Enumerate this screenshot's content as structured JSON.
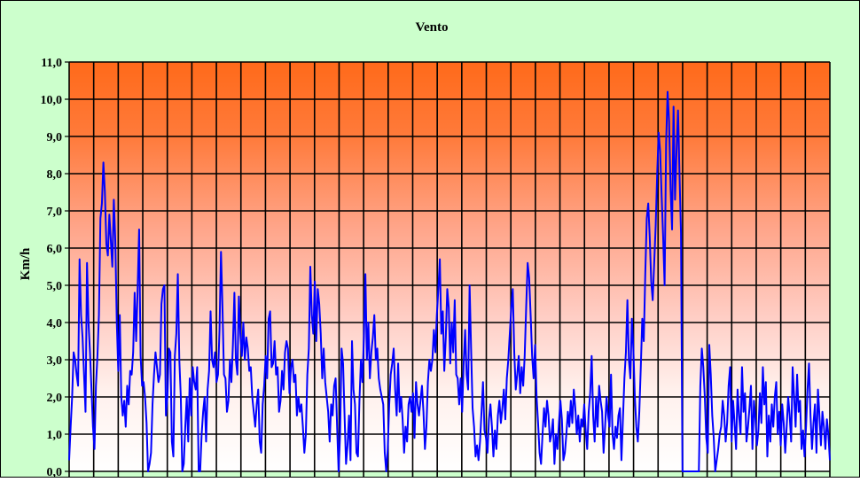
{
  "chart_data": {
    "type": "line",
    "title": "Vento",
    "ylabel": "Km/h",
    "xlabel": "",
    "ylim": [
      0,
      11
    ],
    "yticks": [
      "0,0",
      "1,0",
      "2,0",
      "3,0",
      "4,0",
      "5,0",
      "6,0",
      "7,0",
      "8,0",
      "9,0",
      "10,0",
      "11,0"
    ],
    "grid": true,
    "x_divisions": 31,
    "series": [
      {
        "color": "#0000ff",
        "values": [
          0.3,
          1.2,
          2.0,
          3.2,
          3.0,
          2.6,
          2.3,
          5.7,
          4.2,
          3.6,
          2.6,
          1.6,
          5.6,
          4.0,
          3.2,
          2.2,
          1.2,
          0.6,
          2.3,
          3.1,
          4.2,
          6.8,
          7.2,
          8.3,
          7.5,
          6.1,
          5.8,
          6.9,
          6.2,
          5.5,
          7.3,
          6.2,
          4.0,
          2.7,
          4.2,
          2.0,
          1.5,
          1.9,
          1.2,
          2.3,
          1.8,
          2.7,
          2.6,
          3.2,
          4.8,
          3.5,
          4.9,
          6.5,
          3.1,
          2.3,
          2.4,
          2.0,
          1.3,
          0.0,
          0.2,
          0.5,
          1.8,
          2.6,
          3.2,
          2.8,
          2.4,
          2.6,
          4.5,
          4.9,
          5.0,
          1.5,
          2.0,
          3.3,
          3.2,
          0.8,
          0.4,
          3.1,
          3.7,
          5.3,
          3.0,
          2.0,
          0.0,
          0.2,
          1.2,
          2.0,
          0.8,
          2.5,
          1.5,
          2.8,
          2.4,
          2.2,
          2.8,
          0.0,
          0.0,
          1.0,
          1.6,
          2.0,
          0.8,
          2.2,
          2.7,
          4.3,
          3.0,
          2.8,
          3.2,
          2.4,
          2.6,
          3.8,
          5.9,
          4.4,
          2.6,
          2.5,
          1.6,
          1.9,
          3.0,
          2.4,
          3.4,
          4.8,
          3.0,
          2.6,
          4.7,
          3.7,
          3.1,
          4.0,
          3.0,
          3.6,
          3.3,
          2.7,
          2.8,
          2.0,
          1.6,
          1.2,
          1.8,
          2.2,
          0.8,
          0.5,
          1.8,
          2.3,
          3.1,
          2.5,
          4.1,
          4.3,
          2.8,
          2.9,
          3.5,
          2.6,
          2.8,
          1.6,
          1.9,
          2.7,
          2.2,
          3.2,
          3.5,
          3.3,
          2.1,
          2.8,
          3.0,
          2.4,
          2.6,
          1.5,
          2.0,
          1.6,
          1.8,
          1.2,
          0.5,
          1.0,
          2.6,
          3.3,
          5.5,
          4.2,
          3.7,
          5.1,
          3.5,
          4.9,
          4.5,
          3.7,
          2.5,
          3.3,
          2.4,
          2.0,
          1.6,
          0.8,
          1.8,
          1.5,
          2.3,
          2.5,
          1.2,
          0.0,
          1.0,
          3.3,
          2.9,
          1.5,
          0.2,
          0.7,
          1.5,
          0.3,
          3.5,
          2.2,
          1.8,
          0.5,
          0.4,
          1.9,
          3.0,
          2.4,
          3.6,
          5.3,
          3.0,
          4.0,
          2.5,
          3.2,
          3.6,
          4.2,
          3.0,
          3.3,
          2.5,
          2.2,
          2.0,
          1.8,
          0.5,
          0.0,
          0.6,
          1.8,
          2.6,
          2.9,
          3.3,
          2.2,
          1.5,
          2.9,
          1.6,
          2.0,
          1.4,
          0.5,
          1.2,
          0.8,
          1.8,
          2.0,
          1.6,
          2.1,
          0.9,
          2.4,
          1.8,
          1.5,
          1.9,
          2.3,
          1.6,
          0.6,
          1.2,
          2.4,
          3.0,
          2.7,
          3.0,
          3.8,
          3.2,
          4.2,
          4.9,
          5.7,
          3.7,
          4.3,
          2.7,
          3.6,
          4.9,
          4.4,
          2.9,
          4.0,
          3.2,
          4.6,
          2.6,
          2.5,
          1.8,
          2.5,
          1.6,
          2.9,
          3.8,
          2.6,
          2.2,
          5.0,
          3.3,
          1.7,
          1.2,
          0.4,
          0.7,
          0.3,
          0.8,
          1.6,
          2.4,
          1.1,
          0.9,
          0.5,
          1.4,
          1.8,
          1.2,
          0.4,
          1.1,
          0.6,
          1.5,
          1.9,
          1.3,
          1.7,
          2.2,
          1.4,
          2.5,
          3.0,
          3.7,
          4.4,
          4.9,
          3.2,
          2.2,
          2.6,
          3.1,
          2.1,
          2.8,
          2.3,
          3.1,
          4.4,
          5.6,
          5.2,
          4.2,
          3.1,
          2.5,
          3.4,
          2.0,
          1.3,
          0.5,
          0.2,
          1.0,
          1.7,
          1.2,
          1.9,
          1.5,
          0.8,
          1.0,
          1.4,
          0.2,
          1.0,
          0.6,
          1.3,
          1.9,
          1.4,
          0.3,
          0.5,
          1.0,
          1.6,
          1.2,
          1.9,
          1.3,
          2.2,
          1.7,
          1.0,
          1.5,
          0.8,
          1.4,
          1.2,
          1.8,
          1.1,
          0.6,
          1.6,
          2.1,
          3.1,
          1.5,
          0.8,
          2.0,
          1.2,
          2.3,
          1.9,
          1.6,
          0.5,
          1.2,
          2.0,
          1.5,
          1.2,
          2.6,
          1.0,
          0.6,
          1.2,
          0.9,
          1.5,
          1.7,
          0.3,
          1.4,
          2.5,
          3.2,
          4.6,
          3.0,
          2.5,
          4.1,
          3.3,
          2.0,
          1.2,
          0.8,
          1.6,
          2.8,
          4.1,
          3.5,
          5.3,
          6.8,
          7.2,
          6.3,
          5.1,
          4.6,
          5.6,
          6.6,
          8.0,
          9.1,
          8.6,
          7.4,
          6.3,
          5.0,
          8.8,
          10.2,
          9.4,
          7.6,
          6.5,
          9.8,
          7.3,
          8.6,
          9.7,
          8.0,
          6.4,
          0.0,
          0.0,
          0.0,
          0.0,
          0.0,
          0.0,
          0.0,
          0.0,
          0.0,
          0.0,
          0.0,
          0.0,
          2.3,
          3.3,
          2.8,
          2.0,
          0.9,
          0.5,
          3.4,
          2.6,
          1.5,
          0.9,
          0.0,
          0.3,
          0.6,
          1.0,
          1.2,
          1.9,
          1.5,
          0.8,
          1.3,
          2.3,
          2.8,
          0.8,
          1.9,
          1.3,
          0.6,
          2.2,
          1.5,
          1.0,
          2.8,
          1.6,
          2.1,
          0.8,
          1.2,
          1.7,
          2.3,
          0.6,
          1.9,
          1.4,
          0.7,
          1.1,
          2.1,
          1.3,
          2.8,
          1.8,
          2.4,
          0.4,
          1.5,
          0.8,
          1.8,
          1.2,
          2.0,
          2.4,
          1.0,
          1.6,
          0.7,
          1.8,
          1.3,
          0.5,
          1.2,
          2.0,
          1.5,
          0.8,
          2.8,
          2.0,
          1.2,
          2.6,
          1.6,
          1.9,
          0.6,
          1.1,
          0.4,
          1.2,
          2.2,
          2.9,
          1.5,
          0.6,
          1.3,
          1.8,
          0.5,
          2.2,
          1.5,
          0.7,
          1.6,
          1.2,
          0.6,
          1.4,
          1.0,
          0.3
        ]
      }
    ]
  }
}
